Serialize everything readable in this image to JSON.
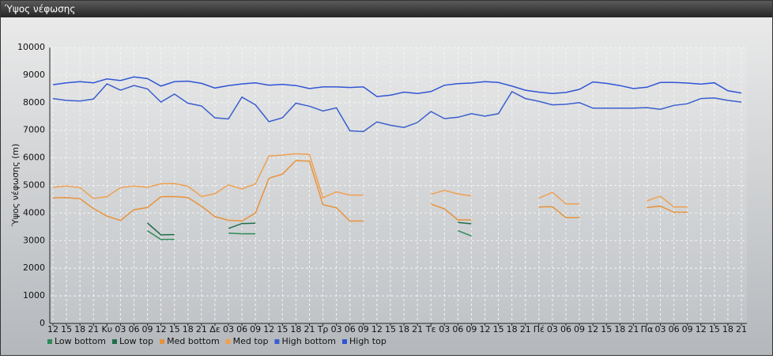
{
  "chart_data": {
    "type": "line",
    "title": "Ύψος νέφωσης",
    "y_label": "Ύψος νέφωσης (m)",
    "categories": [
      "12",
      "15",
      "18",
      "21",
      "Κυ",
      "03",
      "06",
      "09",
      "12",
      "15",
      "18",
      "21",
      "Δε",
      "03",
      "06",
      "09",
      "12",
      "15",
      "18",
      "21",
      "Τρ",
      "03",
      "06",
      "09",
      "12",
      "15",
      "18",
      "21",
      "Τε",
      "03",
      "06",
      "09",
      "12",
      "15",
      "18",
      "21",
      "Πέ",
      "03",
      "06",
      "09",
      "12",
      "15",
      "18",
      "21",
      "Πα",
      "03",
      "06",
      "09",
      "12",
      "15",
      "18",
      "21"
    ],
    "ylim": [
      0,
      10000
    ],
    "yticks": [
      0,
      1000,
      2000,
      3000,
      4000,
      5000,
      6000,
      7000,
      8000,
      9000,
      10000
    ],
    "grid": true,
    "series": [
      {
        "name": "Low bottom",
        "color": "#2e8b57",
        "values": [
          null,
          null,
          null,
          null,
          null,
          null,
          null,
          3360,
          3040,
          3050,
          null,
          null,
          null,
          3270,
          3250,
          3250,
          null,
          null,
          null,
          null,
          null,
          null,
          null,
          null,
          null,
          null,
          null,
          null,
          null,
          null,
          3360,
          3170,
          null,
          null,
          null,
          null,
          null,
          null,
          null,
          null,
          null,
          null,
          null,
          null,
          null,
          null,
          null,
          null,
          null,
          null,
          null,
          null
        ]
      },
      {
        "name": "Low top",
        "color": "#1f6e4a",
        "values": [
          null,
          null,
          null,
          null,
          null,
          null,
          null,
          3640,
          3210,
          3220,
          null,
          null,
          null,
          3440,
          3620,
          3630,
          null,
          null,
          null,
          null,
          null,
          null,
          null,
          null,
          null,
          null,
          null,
          null,
          null,
          null,
          3660,
          3610,
          null,
          null,
          null,
          null,
          null,
          null,
          null,
          null,
          null,
          null,
          null,
          null,
          null,
          null,
          null,
          null,
          null,
          null,
          null,
          null
        ]
      },
      {
        "name": "Med bottom",
        "color": "#e8923a",
        "values": [
          4550,
          4560,
          4520,
          4160,
          3890,
          3730,
          4120,
          4200,
          4590,
          4600,
          4560,
          4250,
          3870,
          3740,
          3710,
          4000,
          5260,
          5410,
          5900,
          5880,
          4300,
          4190,
          3710,
          3710,
          null,
          null,
          null,
          null,
          4330,
          4150,
          3750,
          3750,
          null,
          null,
          null,
          null,
          4220,
          4230,
          3830,
          3830,
          null,
          null,
          null,
          null,
          4200,
          4250,
          4030,
          4030,
          null,
          null,
          null,
          null
        ]
      },
      {
        "name": "Med top",
        "color": "#f0a050",
        "values": [
          4930,
          4980,
          4920,
          4530,
          4590,
          4920,
          4980,
          4930,
          5060,
          5070,
          4970,
          4600,
          4700,
          5020,
          4870,
          5060,
          6070,
          6100,
          6150,
          6120,
          4550,
          4770,
          4650,
          4650,
          null,
          null,
          null,
          null,
          4680,
          4820,
          4690,
          4620,
          null,
          null,
          null,
          null,
          4540,
          4750,
          4330,
          4330,
          null,
          null,
          null,
          null,
          4440,
          4610,
          4220,
          4220,
          null,
          null,
          null,
          null
        ]
      },
      {
        "name": "High bottom",
        "color": "#3a5fcd",
        "values": [
          8150,
          8080,
          8060,
          8130,
          8680,
          8450,
          8620,
          8500,
          8020,
          8310,
          7980,
          7880,
          7450,
          7410,
          8200,
          7920,
          7310,
          7450,
          7980,
          7870,
          7700,
          7810,
          6980,
          6950,
          7300,
          7180,
          7100,
          7280,
          7680,
          7420,
          7470,
          7600,
          7510,
          7600,
          8400,
          8150,
          8050,
          7920,
          7940,
          8000,
          7800,
          7800,
          7800,
          7800,
          7820,
          7760,
          7900,
          7960,
          8150,
          8170,
          8080,
          8020
        ]
      },
      {
        "name": "High top",
        "color": "#2f55d4",
        "values": [
          8650,
          8720,
          8760,
          8720,
          8860,
          8800,
          8930,
          8870,
          8600,
          8760,
          8780,
          8700,
          8530,
          8620,
          8680,
          8720,
          8630,
          8660,
          8620,
          8510,
          8570,
          8570,
          8550,
          8570,
          8220,
          8270,
          8380,
          8330,
          8400,
          8630,
          8690,
          8710,
          8760,
          8730,
          8600,
          8450,
          8380,
          8330,
          8370,
          8480,
          8750,
          8700,
          8620,
          8510,
          8560,
          8730,
          8730,
          8710,
          8670,
          8720,
          8430,
          8350
        ]
      }
    ]
  }
}
